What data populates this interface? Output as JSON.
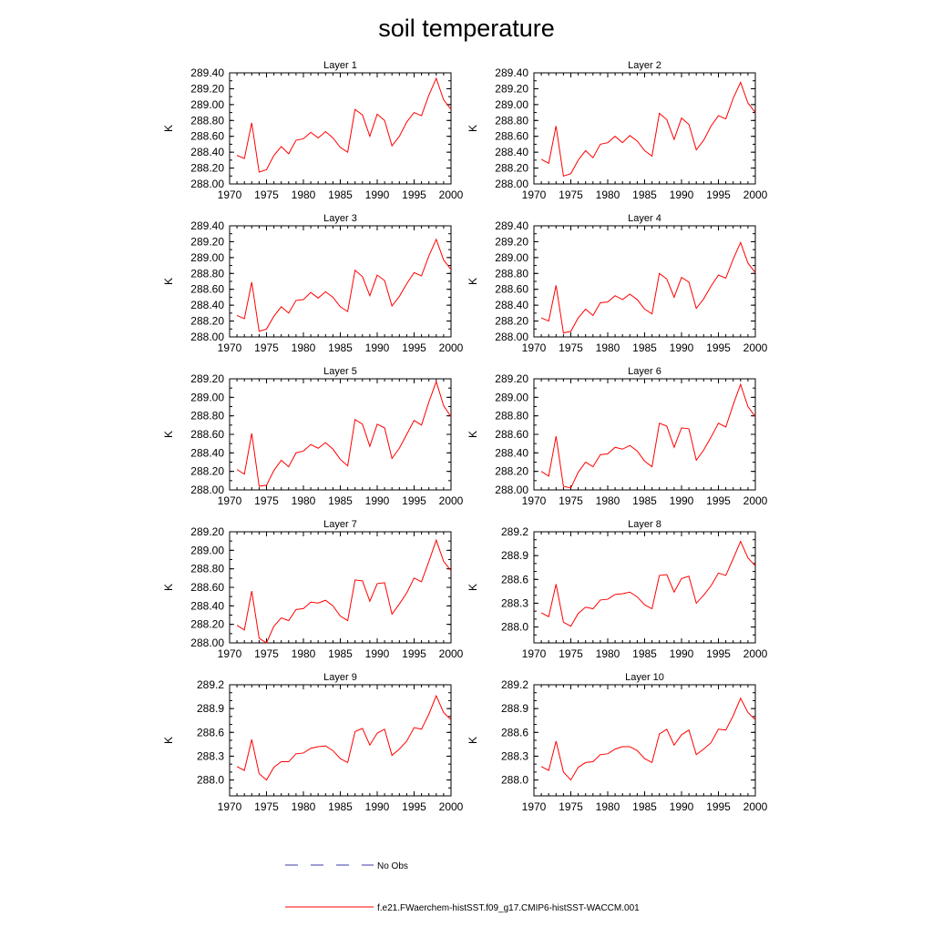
{
  "title": "soil temperature",
  "colors": {
    "model": "#ff0000",
    "obs": "#3a3aaa",
    "axis": "#000000"
  },
  "legend": {
    "obs_label": "No Obs",
    "model_label": "f.e21.FWaerchem-histSST.f09_g17.CMIP6-histSST-WACCM.001"
  },
  "chart_data": [
    {
      "type": "line",
      "title": "Layer 1",
      "xlabel": "",
      "ylabel": "K",
      "xlim": [
        1970,
        2000
      ],
      "ylim": [
        288.0,
        289.4
      ],
      "x_ticks": [
        "1970",
        "1975",
        "1980",
        "1985",
        "1990",
        "1995",
        "2000"
      ],
      "y_ticks": [
        "288.00",
        "288.20",
        "288.40",
        "288.60",
        "288.80",
        "289.00",
        "289.20",
        "289.40"
      ],
      "x": [
        1971,
        1972,
        1973,
        1974,
        1975,
        1976,
        1977,
        1978,
        1979,
        1980,
        1981,
        1982,
        1983,
        1984,
        1985,
        1986,
        1987,
        1988,
        1989,
        1990,
        1991,
        1992,
        1993,
        1994,
        1995,
        1996,
        1997,
        1998,
        1999,
        2000
      ],
      "series": [
        {
          "values": [
            288.36,
            288.32,
            288.77,
            288.15,
            288.18,
            288.36,
            288.47,
            288.38,
            288.55,
            288.57,
            288.65,
            288.58,
            288.66,
            288.58,
            288.46,
            288.4,
            288.94,
            288.87,
            288.6,
            288.88,
            288.8,
            288.48,
            288.6,
            288.78,
            288.9,
            288.86,
            289.12,
            289.33,
            289.06,
            288.94
          ]
        }
      ]
    },
    {
      "type": "line",
      "title": "Layer 2",
      "xlabel": "",
      "ylabel": "K",
      "xlim": [
        1970,
        2000
      ],
      "ylim": [
        288.0,
        289.4
      ],
      "x_ticks": [
        "1970",
        "1975",
        "1980",
        "1985",
        "1990",
        "1995",
        "2000"
      ],
      "y_ticks": [
        "288.00",
        "288.20",
        "288.40",
        "288.60",
        "288.80",
        "289.00",
        "289.20",
        "289.40"
      ],
      "x": [
        1971,
        1972,
        1973,
        1974,
        1975,
        1976,
        1977,
        1978,
        1979,
        1980,
        1981,
        1982,
        1983,
        1984,
        1985,
        1986,
        1987,
        1988,
        1989,
        1990,
        1991,
        1992,
        1993,
        1994,
        1995,
        1996,
        1997,
        1998,
        1999,
        2000
      ],
      "series": [
        {
          "values": [
            288.31,
            288.26,
            288.73,
            288.1,
            288.13,
            288.3,
            288.42,
            288.33,
            288.5,
            288.52,
            288.6,
            288.52,
            288.61,
            288.54,
            288.42,
            288.35,
            288.89,
            288.81,
            288.56,
            288.83,
            288.75,
            288.43,
            288.55,
            288.73,
            288.86,
            288.82,
            289.08,
            289.28,
            289.02,
            288.9
          ]
        }
      ]
    },
    {
      "type": "line",
      "title": "Layer 3",
      "xlabel": "",
      "ylabel": "K",
      "xlim": [
        1970,
        2000
      ],
      "ylim": [
        288.0,
        289.4
      ],
      "x_ticks": [
        "1970",
        "1975",
        "1980",
        "1985",
        "1990",
        "1995",
        "2000"
      ],
      "y_ticks": [
        "288.00",
        "288.20",
        "288.40",
        "288.60",
        "288.80",
        "289.00",
        "289.20",
        "289.40"
      ],
      "x": [
        1971,
        1972,
        1973,
        1974,
        1975,
        1976,
        1977,
        1978,
        1979,
        1980,
        1981,
        1982,
        1983,
        1984,
        1985,
        1986,
        1987,
        1988,
        1989,
        1990,
        1991,
        1992,
        1993,
        1994,
        1995,
        1996,
        1997,
        1998,
        1999,
        2000
      ],
      "series": [
        {
          "values": [
            288.27,
            288.23,
            288.69,
            288.07,
            288.1,
            288.26,
            288.38,
            288.3,
            288.46,
            288.47,
            288.56,
            288.49,
            288.57,
            288.5,
            288.38,
            288.32,
            288.84,
            288.76,
            288.52,
            288.78,
            288.71,
            288.39,
            288.51,
            288.67,
            288.81,
            288.77,
            289.02,
            289.23,
            288.97,
            288.85
          ]
        }
      ]
    },
    {
      "type": "line",
      "title": "Layer 4",
      "xlabel": "",
      "ylabel": "K",
      "xlim": [
        1970,
        2000
      ],
      "ylim": [
        288.0,
        289.4
      ],
      "x_ticks": [
        "1970",
        "1975",
        "1980",
        "1985",
        "1990",
        "1995",
        "2000"
      ],
      "y_ticks": [
        "288.00",
        "288.20",
        "288.40",
        "288.60",
        "288.80",
        "289.00",
        "289.20",
        "289.40"
      ],
      "x": [
        1971,
        1972,
        1973,
        1974,
        1975,
        1976,
        1977,
        1978,
        1979,
        1980,
        1981,
        1982,
        1983,
        1984,
        1985,
        1986,
        1987,
        1988,
        1989,
        1990,
        1991,
        1992,
        1993,
        1994,
        1995,
        1996,
        1997,
        1998,
        1999,
        2000
      ],
      "series": [
        {
          "values": [
            288.24,
            288.2,
            288.65,
            288.05,
            288.07,
            288.24,
            288.35,
            288.27,
            288.43,
            288.44,
            288.52,
            288.47,
            288.54,
            288.47,
            288.35,
            288.29,
            288.8,
            288.73,
            288.5,
            288.75,
            288.69,
            288.36,
            288.48,
            288.64,
            288.78,
            288.74,
            288.98,
            289.19,
            288.93,
            288.81
          ]
        }
      ]
    },
    {
      "type": "line",
      "title": "Layer 5",
      "xlabel": "",
      "ylabel": "K",
      "xlim": [
        1970,
        2000
      ],
      "ylim": [
        288.0,
        289.2
      ],
      "x_ticks": [
        "1970",
        "1975",
        "1980",
        "1985",
        "1990",
        "1995",
        "2000"
      ],
      "y_ticks": [
        "288.00",
        "288.20",
        "288.40",
        "288.60",
        "288.80",
        "289.00",
        "289.20"
      ],
      "x": [
        1971,
        1972,
        1973,
        1974,
        1975,
        1976,
        1977,
        1978,
        1979,
        1980,
        1981,
        1982,
        1983,
        1984,
        1985,
        1986,
        1987,
        1988,
        1989,
        1990,
        1991,
        1992,
        1993,
        1994,
        1995,
        1996,
        1997,
        1998,
        1999,
        2000
      ],
      "series": [
        {
          "values": [
            288.22,
            288.17,
            288.61,
            288.04,
            288.05,
            288.21,
            288.32,
            288.25,
            288.4,
            288.42,
            288.49,
            288.45,
            288.51,
            288.44,
            288.33,
            288.26,
            288.76,
            288.71,
            288.47,
            288.71,
            288.67,
            288.34,
            288.45,
            288.6,
            288.75,
            288.7,
            288.95,
            289.17,
            288.91,
            288.79
          ]
        }
      ]
    },
    {
      "type": "line",
      "title": "Layer 6",
      "xlabel": "",
      "ylabel": "K",
      "xlim": [
        1970,
        2000
      ],
      "ylim": [
        288.0,
        289.2
      ],
      "x_ticks": [
        "1970",
        "1975",
        "1980",
        "1985",
        "1990",
        "1995",
        "2000"
      ],
      "y_ticks": [
        "288.00",
        "288.20",
        "288.40",
        "288.60",
        "288.80",
        "289.00",
        "289.20"
      ],
      "x": [
        1971,
        1972,
        1973,
        1974,
        1975,
        1976,
        1977,
        1978,
        1979,
        1980,
        1981,
        1982,
        1983,
        1984,
        1985,
        1986,
        1987,
        1988,
        1989,
        1990,
        1991,
        1992,
        1993,
        1994,
        1995,
        1996,
        1997,
        1998,
        1999,
        2000
      ],
      "series": [
        {
          "values": [
            288.2,
            288.15,
            288.58,
            288.04,
            288.02,
            288.19,
            288.3,
            288.25,
            288.38,
            288.39,
            288.46,
            288.44,
            288.48,
            288.42,
            288.31,
            288.25,
            288.72,
            288.69,
            288.46,
            288.67,
            288.66,
            288.32,
            288.43,
            288.57,
            288.72,
            288.68,
            288.92,
            289.14,
            288.9,
            288.79
          ]
        }
      ]
    },
    {
      "type": "line",
      "title": "Layer 7",
      "xlabel": "",
      "ylabel": "K",
      "xlim": [
        1970,
        2000
      ],
      "ylim": [
        288.0,
        289.2
      ],
      "x_ticks": [
        "1970",
        "1975",
        "1980",
        "1985",
        "1990",
        "1995",
        "2000"
      ],
      "y_ticks": [
        "288.00",
        "288.20",
        "288.40",
        "288.60",
        "288.80",
        "289.00",
        "289.20"
      ],
      "x": [
        1971,
        1972,
        1973,
        1974,
        1975,
        1976,
        1977,
        1978,
        1979,
        1980,
        1981,
        1982,
        1983,
        1984,
        1985,
        1986,
        1987,
        1988,
        1989,
        1990,
        1991,
        1992,
        1993,
        1994,
        1995,
        1996,
        1997,
        1998,
        1999,
        2000
      ],
      "series": [
        {
          "values": [
            288.19,
            288.14,
            288.56,
            288.05,
            288.0,
            288.18,
            288.27,
            288.24,
            288.36,
            288.37,
            288.44,
            288.43,
            288.46,
            288.4,
            288.29,
            288.24,
            288.68,
            288.67,
            288.45,
            288.64,
            288.65,
            288.31,
            288.42,
            288.54,
            288.7,
            288.66,
            288.88,
            289.11,
            288.88,
            288.78
          ]
        }
      ]
    },
    {
      "type": "line",
      "title": "Layer 8",
      "xlabel": "",
      "ylabel": "K",
      "xlim": [
        1970,
        2000
      ],
      "ylim": [
        287.8,
        289.2
      ],
      "x_ticks": [
        "1970",
        "1975",
        "1980",
        "1985",
        "1990",
        "1995",
        "2000"
      ],
      "y_ticks": [
        "288.0",
        "288.3",
        "288.6",
        "288.9",
        "289.2"
      ],
      "x": [
        1971,
        1972,
        1973,
        1974,
        1975,
        1976,
        1977,
        1978,
        1979,
        1980,
        1981,
        1982,
        1983,
        1984,
        1985,
        1986,
        1987,
        1988,
        1989,
        1990,
        1991,
        1992,
        1993,
        1994,
        1995,
        1996,
        1997,
        1998,
        1999,
        2000
      ],
      "series": [
        {
          "values": [
            288.18,
            288.13,
            288.54,
            288.06,
            288.01,
            288.17,
            288.25,
            288.23,
            288.34,
            288.35,
            288.41,
            288.42,
            288.44,
            288.38,
            288.28,
            288.23,
            288.65,
            288.66,
            288.44,
            288.61,
            288.64,
            288.3,
            288.4,
            288.52,
            288.68,
            288.65,
            288.86,
            289.08,
            288.87,
            288.77
          ]
        }
      ]
    },
    {
      "type": "line",
      "title": "Layer 9",
      "xlabel": "",
      "ylabel": "K",
      "xlim": [
        1970,
        2000
      ],
      "ylim": [
        287.8,
        289.2
      ],
      "x_ticks": [
        "1970",
        "1975",
        "1980",
        "1985",
        "1990",
        "1995",
        "2000"
      ],
      "y_ticks": [
        "288.0",
        "288.3",
        "288.6",
        "288.9",
        "289.2"
      ],
      "x": [
        1971,
        1972,
        1973,
        1974,
        1975,
        1976,
        1977,
        1978,
        1979,
        1980,
        1981,
        1982,
        1983,
        1984,
        1985,
        1986,
        1987,
        1988,
        1989,
        1990,
        1991,
        1992,
        1993,
        1994,
        1995,
        1996,
        1997,
        1998,
        1999,
        2000
      ],
      "series": [
        {
          "values": [
            288.17,
            288.12,
            288.51,
            288.08,
            288.0,
            288.16,
            288.23,
            288.23,
            288.33,
            288.34,
            288.4,
            288.42,
            288.43,
            288.37,
            288.27,
            288.22,
            288.61,
            288.65,
            288.44,
            288.59,
            288.64,
            288.31,
            288.39,
            288.49,
            288.66,
            288.64,
            288.83,
            289.06,
            288.85,
            288.76
          ]
        }
      ]
    },
    {
      "type": "line",
      "title": "Layer 10",
      "xlabel": "",
      "ylabel": "K",
      "xlim": [
        1970,
        2000
      ],
      "ylim": [
        287.8,
        289.2
      ],
      "x_ticks": [
        "1970",
        "1975",
        "1980",
        "1985",
        "1990",
        "1995",
        "2000"
      ],
      "y_ticks": [
        "288.0",
        "288.3",
        "288.6",
        "288.9",
        "289.2"
      ],
      "x": [
        1971,
        1972,
        1973,
        1974,
        1975,
        1976,
        1977,
        1978,
        1979,
        1980,
        1981,
        1982,
        1983,
        1984,
        1985,
        1986,
        1987,
        1988,
        1989,
        1990,
        1991,
        1992,
        1993,
        1994,
        1995,
        1996,
        1997,
        1998,
        1999,
        2000
      ],
      "series": [
        {
          "values": [
            288.17,
            288.12,
            288.49,
            288.1,
            288.0,
            288.16,
            288.22,
            288.23,
            288.32,
            288.33,
            288.39,
            288.42,
            288.42,
            288.37,
            288.27,
            288.22,
            288.58,
            288.64,
            288.44,
            288.57,
            288.63,
            288.32,
            288.39,
            288.47,
            288.64,
            288.63,
            288.81,
            289.03,
            288.85,
            288.76
          ]
        }
      ]
    }
  ]
}
